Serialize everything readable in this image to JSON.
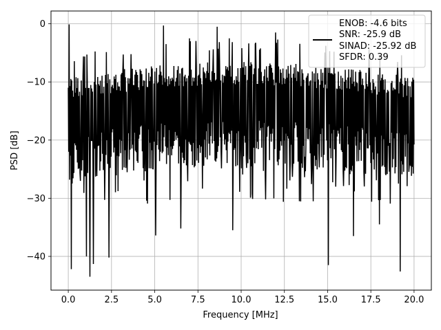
{
  "chart_data": {
    "type": "line",
    "title": "",
    "xlabel": "Frequency [MHz]",
    "ylabel": "PSD [dB]",
    "xlim": [
      -1.0,
      21.0
    ],
    "ylim": [
      -45.8,
      2.2
    ],
    "xticks": [
      0.0,
      2.5,
      5.0,
      7.5,
      10.0,
      12.5,
      15.0,
      17.5,
      20.0
    ],
    "xtick_labels": [
      "0.0",
      "2.5",
      "5.0",
      "7.5",
      "10.0",
      "12.5",
      "15.0",
      "17.5",
      "20.0"
    ],
    "yticks": [
      0,
      -10,
      -20,
      -30,
      -40
    ],
    "ytick_labels": [
      "0",
      "−10",
      "−20",
      "−30",
      "−40"
    ],
    "grid": true,
    "legend_position": "top-right",
    "series": [
      {
        "color": "#000000",
        "x_range": [
          0.0,
          20.0
        ],
        "baseline_db": -15.5,
        "points": 800,
        "dips": [
          {
            "x": 0.17,
            "y": -42.2
          },
          {
            "x": 1.25,
            "y": -43.5
          },
          {
            "x": 1.45,
            "y": -41.3
          },
          {
            "x": 2.35,
            "y": -40.2
          },
          {
            "x": 1.05,
            "y": -40.0
          },
          {
            "x": 5.05,
            "y": -36.4
          },
          {
            "x": 6.5,
            "y": -35.2
          },
          {
            "x": 9.5,
            "y": -35.5
          },
          {
            "x": 15.05,
            "y": -41.5
          },
          {
            "x": 16.5,
            "y": -36.5
          },
          {
            "x": 18.0,
            "y": -34.5
          },
          {
            "x": 19.2,
            "y": -42.6
          }
        ],
        "peaks": [
          {
            "x": 0.05,
            "y": -0.1
          },
          {
            "x": 5.5,
            "y": -0.3
          },
          {
            "x": 8.6,
            "y": -0.5
          },
          {
            "x": 7.0,
            "y": -2.5
          },
          {
            "x": 12.0,
            "y": -1.5
          },
          {
            "x": 9.3,
            "y": -2.5
          }
        ]
      }
    ],
    "legend": {
      "lines": [
        "ENOB: -4.6 bits",
        "SNR: -25.9 dB",
        "SINAD: -25.92 dB",
        "SFDR: 0.39"
      ],
      "line_color": "#000000"
    }
  },
  "colors": {
    "axes": "#000000",
    "grid": "#b0b0b0",
    "background": "#ffffff",
    "legend_border": "#cccccc"
  }
}
